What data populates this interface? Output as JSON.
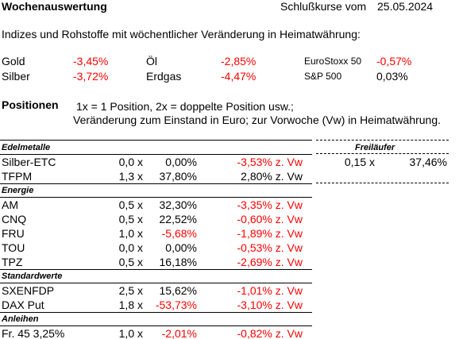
{
  "header": {
    "title": "Wochenauswertung",
    "label": "Schlußkurse vom",
    "date": "25.05.2024"
  },
  "indices": {
    "intro": "Indizes und Rohstoffe mit wöchentlicher Veränderung in Heimatwährung:",
    "rows": [
      [
        {
          "name": "Gold",
          "value": "-3,45%"
        },
        {
          "name": "Öl",
          "value": "-2,85%"
        },
        {
          "name": "EuroStoxx 50",
          "value": "-0,57%"
        }
      ],
      [
        {
          "name": "Silber",
          "value": "-3,72%"
        },
        {
          "name": "Erdgas",
          "value": "-4,47%"
        },
        {
          "name": "S&P 500",
          "value": "0,03%"
        }
      ]
    ]
  },
  "positions": {
    "title": "Positionen",
    "notes": [
      "1x = 1 Position, 2x = doppelte Position usw.;",
      "Veränderung zum Einstand in Euro; zur Vorwoche (Vw) in Heimatwährung."
    ]
  },
  "sections": [
    {
      "title": "Edelmetalle",
      "rows": [
        [
          "Silber-ETC",
          "0,0 x",
          "0,00%",
          "-3,53% z. Vw"
        ],
        [
          "TFPM",
          "1,3 x",
          "37,80%",
          "2,80% z. Vw"
        ]
      ]
    },
    {
      "title": "Energie",
      "rows": [
        [
          "AM",
          "0,5 x",
          "32,30%",
          "-3,35% z. Vw"
        ],
        [
          "CNQ",
          "0,5 x",
          "22,52%",
          "-0,60% z. Vw"
        ],
        [
          "FRU",
          "1,0 x",
          "-5,68%",
          "-1,89% z. Vw"
        ],
        [
          "TOU",
          "0,0 x",
          "0,00%",
          "-0,53% z. Vw"
        ],
        [
          "TPZ",
          "0,5 x",
          "16,18%",
          "-2,69% z. Vw"
        ]
      ]
    },
    {
      "title": "Standardwerte",
      "rows": [
        [
          "SXENFDP",
          "2,5 x",
          "15,62%",
          "-1,01% z. Vw"
        ],
        [
          "DAX Put",
          "1,8 x",
          "-53,73%",
          "-3,10% z. Vw"
        ]
      ]
    },
    {
      "title": "Anleihen",
      "rows": [
        [
          "Fr. 45 3,25%",
          "1,0 x",
          "-2,01%",
          "-0,82% z. Vw"
        ]
      ]
    }
  ],
  "freilaeufer": {
    "title": "Freiläufer",
    "rows": [
      [
        "0,15 x",
        "37,46%"
      ]
    ]
  }
}
